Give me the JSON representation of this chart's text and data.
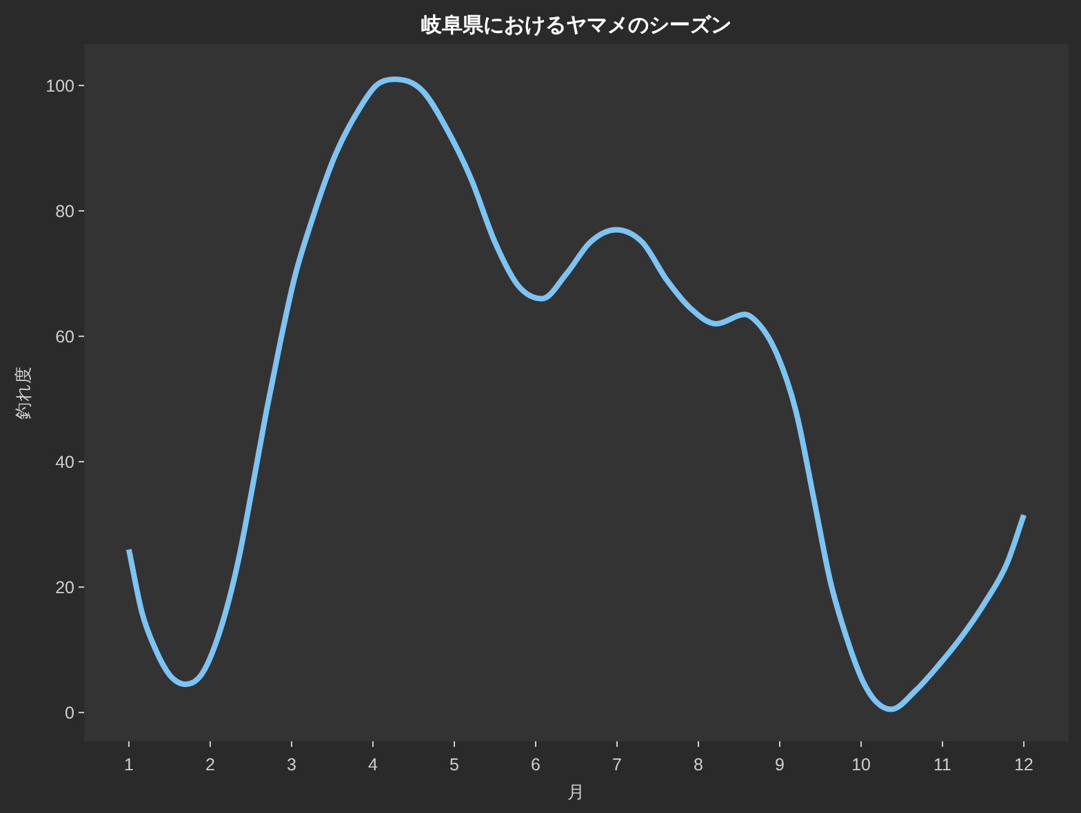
{
  "chart_data": {
    "type": "line",
    "title": "岐阜県におけるヤマメのシーズン",
    "xlabel": "月",
    "ylabel": "釣れ度",
    "x": [
      1,
      1.16,
      1.33,
      1.5,
      1.7,
      1.89,
      2.12,
      2.35,
      2.52,
      2.69,
      2.86,
      3.03,
      3.25,
      3.54,
      3.82,
      4.04,
      4.26,
      4.62,
      4.91,
      5.21,
      5.5,
      5.79,
      6.08,
      6.38,
      6.67,
      6.99,
      7.31,
      7.61,
      7.9,
      8.22,
      8.57,
      8.74,
      8.97,
      9.2,
      9.42,
      9.62,
      9.82,
      10.04,
      10.37,
      10.67,
      10.95,
      11.23,
      11.52,
      11.8,
      12
    ],
    "series": [
      {
        "color": "#7bc4f4",
        "values": [
          26,
          16,
          10,
          6,
          4.5,
          6,
          13,
          24.5,
          36,
          48,
          59,
          69,
          78.5,
          89,
          96,
          100,
          101,
          99,
          93,
          85,
          75,
          68,
          66,
          70,
          75,
          77,
          75,
          69,
          64.5,
          62,
          63.5,
          62,
          57,
          48,
          34,
          21,
          12,
          4.5,
          0.5,
          3.5,
          7.5,
          12,
          17.5,
          24,
          31.5
        ]
      }
    ],
    "xlim": [
      0.45,
      12.55
    ],
    "xticks": [
      1,
      2,
      3,
      4,
      5,
      6,
      7,
      8,
      9,
      10,
      11,
      12
    ],
    "ylim": [
      -4.6,
      106.6
    ],
    "yticks": [
      0,
      20,
      40,
      60,
      80,
      100
    ],
    "line_style": "solid"
  }
}
